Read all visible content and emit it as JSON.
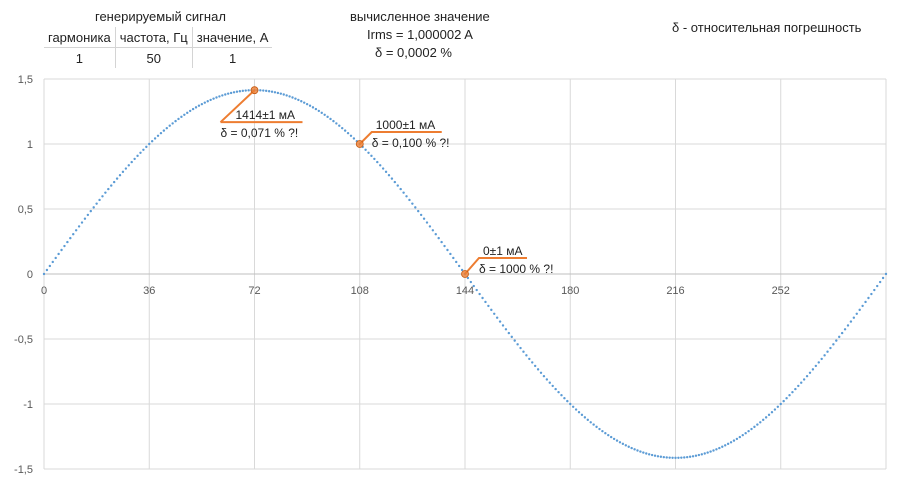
{
  "header": {
    "signal_title": "генерируемый сигнал",
    "columns": [
      "гармоника",
      "частота, Гц",
      "значение, А"
    ],
    "values": [
      "1",
      "50",
      "1"
    ],
    "calc_title": "вычисленное значение",
    "irms": "Irms = 1,000002 A",
    "delta": "δ = 0,0002 %",
    "note": "δ - относительная погрешность"
  },
  "colors": {
    "series": "#5b9bd5",
    "annotation": "#ed7d31",
    "grid": "#d9d9d9",
    "axis_text": "#595959"
  },
  "chart_data": {
    "type": "scatter",
    "xlim": [
      0,
      288
    ],
    "ylim": [
      -1.5,
      1.5
    ],
    "x_ticks": [
      0,
      36,
      72,
      108,
      144,
      180,
      216,
      252
    ],
    "x_tick_labels": [
      "0",
      "36",
      "72",
      "108",
      "144",
      "180",
      "216",
      "252"
    ],
    "y_ticks": [
      1.5,
      1,
      0.5,
      0,
      -0.5,
      -1,
      -1.5
    ],
    "y_tick_labels": [
      "1,5",
      "1",
      "0,5",
      "0",
      "-0,5",
      "-1",
      "-1,5"
    ],
    "grid": true,
    "series": [
      {
        "function": "sqrt(2)*sin(2*pi*x/288)",
        "x_start": 0,
        "x_end": 288,
        "x_step": 1
      }
    ],
    "highlight_points": [
      {
        "x": 72,
        "y": 1.414,
        "label1": "1414±1 мА",
        "label2": "δ = 0,071 % ?!"
      },
      {
        "x": 108,
        "y": 1.0,
        "label1": "1000±1 мА",
        "label2": "δ = 0,100 % ?!"
      },
      {
        "x": 144,
        "y": 0.0,
        "label1": "0±1 мА",
        "label2": "δ = 1000 % ?!"
      }
    ]
  }
}
